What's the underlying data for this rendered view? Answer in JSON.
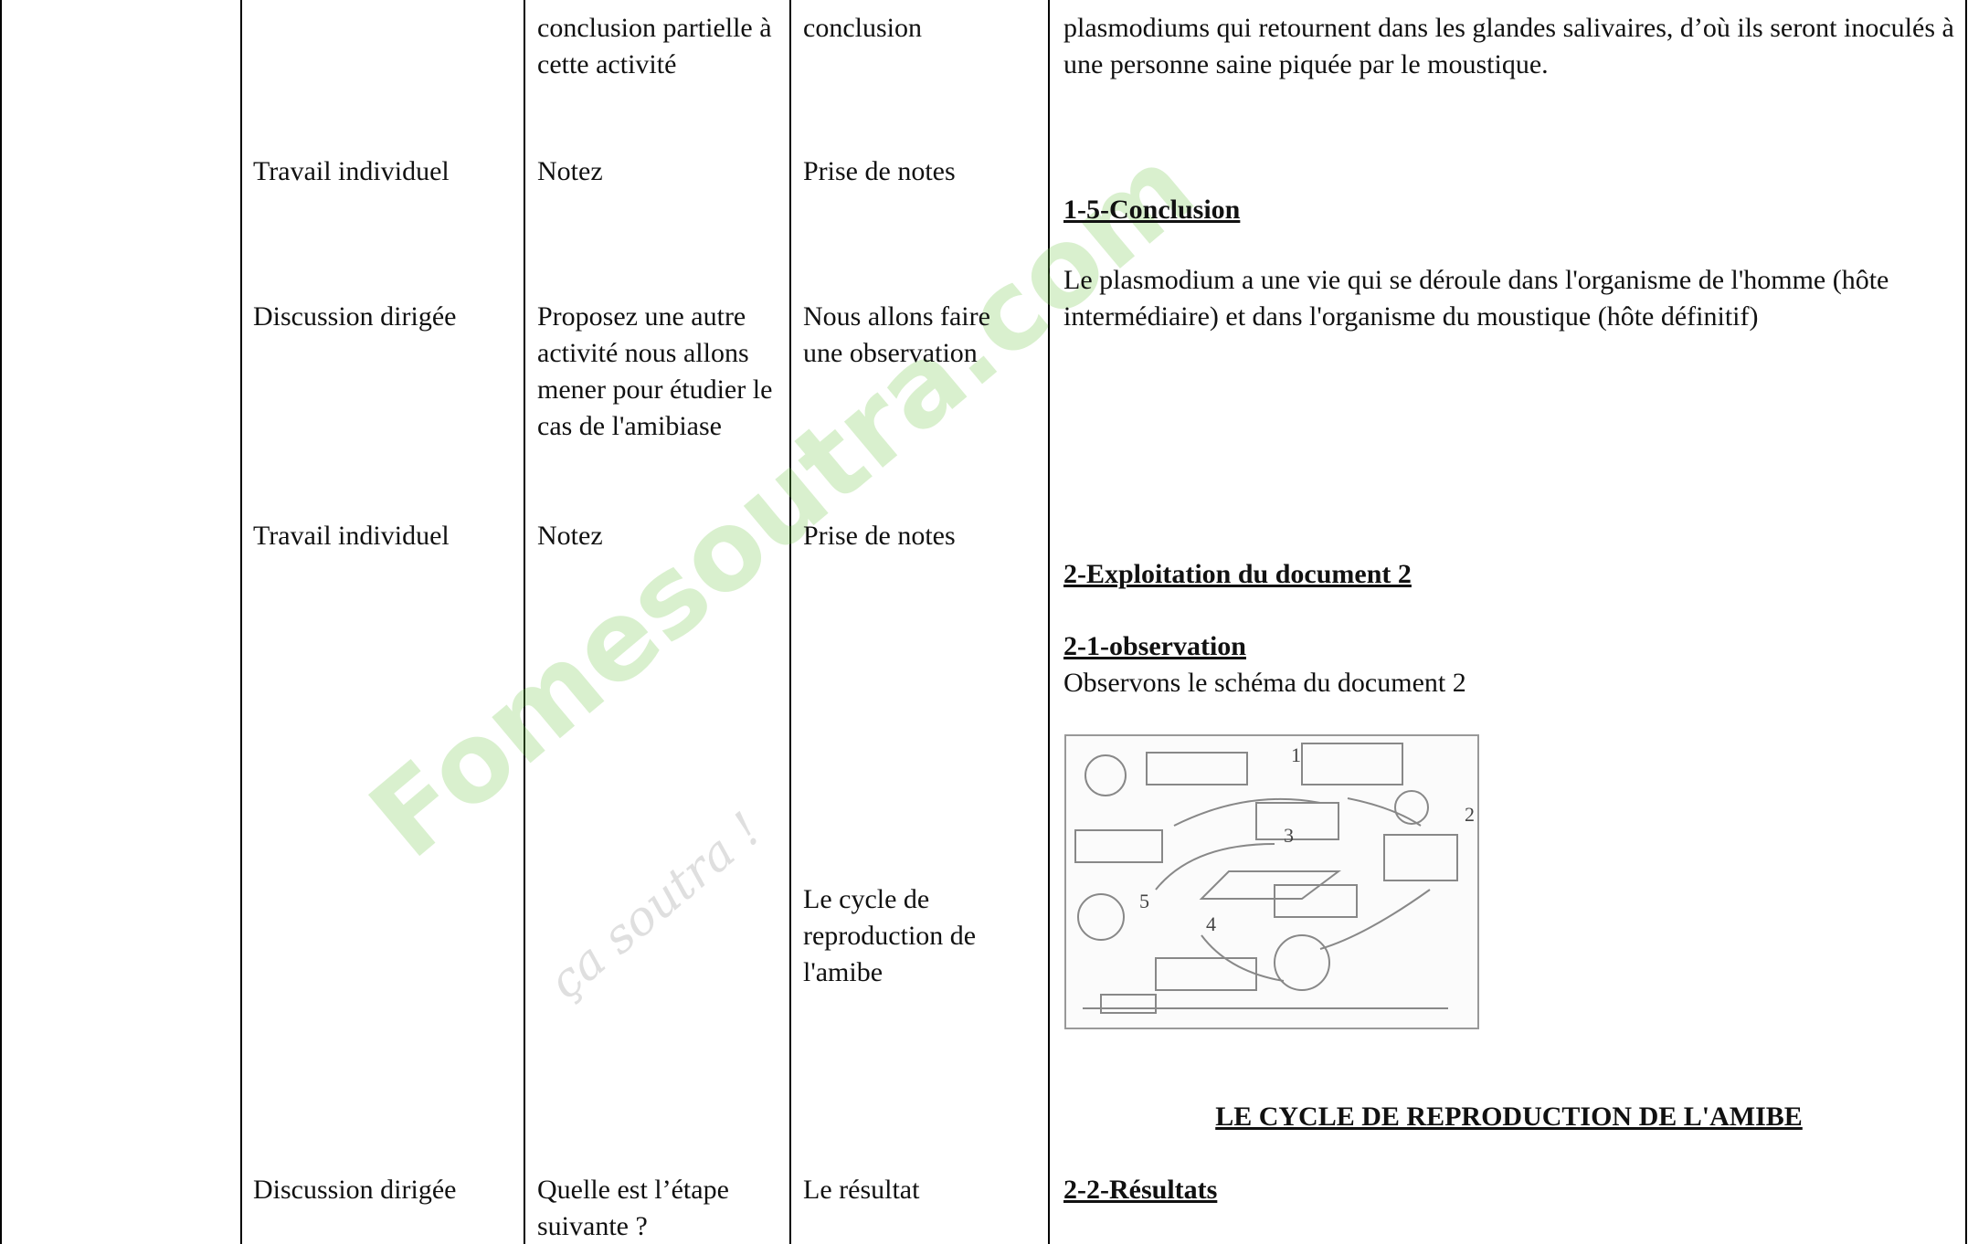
{
  "rows": [
    {
      "question": "conclusion partielle à cette activité",
      "answer": "conclusion"
    },
    {
      "mode": "Travail individuel",
      "question": "Notez",
      "answer": "Prise de notes"
    },
    {
      "mode": "Discussion dirigée",
      "question": "Proposez une autre activité nous allons mener pour étudier le cas de l'amibiase",
      "answer": "Nous allons faire une observation"
    },
    {
      "mode": "Travail individuel",
      "question": "Notez",
      "answer": "Prise de notes"
    },
    {
      "answer": "Le cycle de reproduction de l'amibe"
    },
    {
      "mode": "Discussion dirigée",
      "question": "Quelle est l’étape suivante ?",
      "answer": "Le résultat"
    }
  ],
  "content": {
    "intro": "plasmodiums  qui retournent dans les glandes salivaires, d’où ils seront inoculés à une personne saine piquée par le moustique.",
    "conclusion_heading": "1-5-Conclusion",
    "conclusion_text": "Le plasmodium a une vie qui se déroule dans l'organisme de l'homme (hôte intermédiaire) et dans l'organisme du moustique (hôte définitif)",
    "section_heading": "2-Exploitation du document 2",
    "observation_heading": "2-1-observation",
    "observation_text": "Observons le schéma du document 2",
    "figure_labels": [
      "1",
      "2",
      "3",
      "4",
      "5"
    ],
    "figure_caption": "LE CYCLE DE REPRODUCTION DE L'AMIBE",
    "results_heading": "2-2-Résultats"
  },
  "watermark": {
    "main": "Fomesoutra.com",
    "sub": "ça soutra !"
  }
}
